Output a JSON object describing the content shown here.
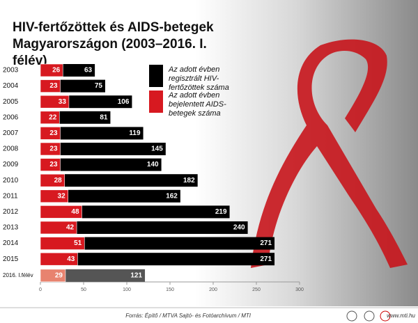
{
  "chart_data": {
    "type": "bar",
    "orientation": "horizontal",
    "overlap": true,
    "title": "HIV-fertőzöttek és AIDS-betegek Magyarországon (2003–2016. I. félév)",
    "categories": [
      "2003",
      "2004",
      "2005",
      "2006",
      "2007",
      "2008",
      "2009",
      "2010",
      "2011",
      "2012",
      "2013",
      "2014",
      "2015",
      "2016. I.félév"
    ],
    "series": [
      {
        "name": "Az adott évben regisztrált HIV-fertőzöttek száma",
        "color": "#000000",
        "last_color": "#555555",
        "values": [
          63,
          75,
          106,
          81,
          119,
          145,
          140,
          182,
          162,
          219,
          240,
          271,
          271,
          121
        ]
      },
      {
        "name": "Az adott évben bejelentett AIDS-betegek száma",
        "color": "#d71920",
        "last_color": "#e8836f",
        "values": [
          26,
          23,
          33,
          22,
          23,
          23,
          23,
          28,
          32,
          48,
          42,
          51,
          43,
          29
        ]
      }
    ],
    "xlim": [
      0,
      300
    ],
    "xticks": [
      0,
      50,
      100,
      150,
      200,
      250,
      300
    ],
    "source": "Forrás: Építő / MTVA Sajtó- és Fotóarchívum / MTI",
    "website": "www.mti.hu"
  }
}
